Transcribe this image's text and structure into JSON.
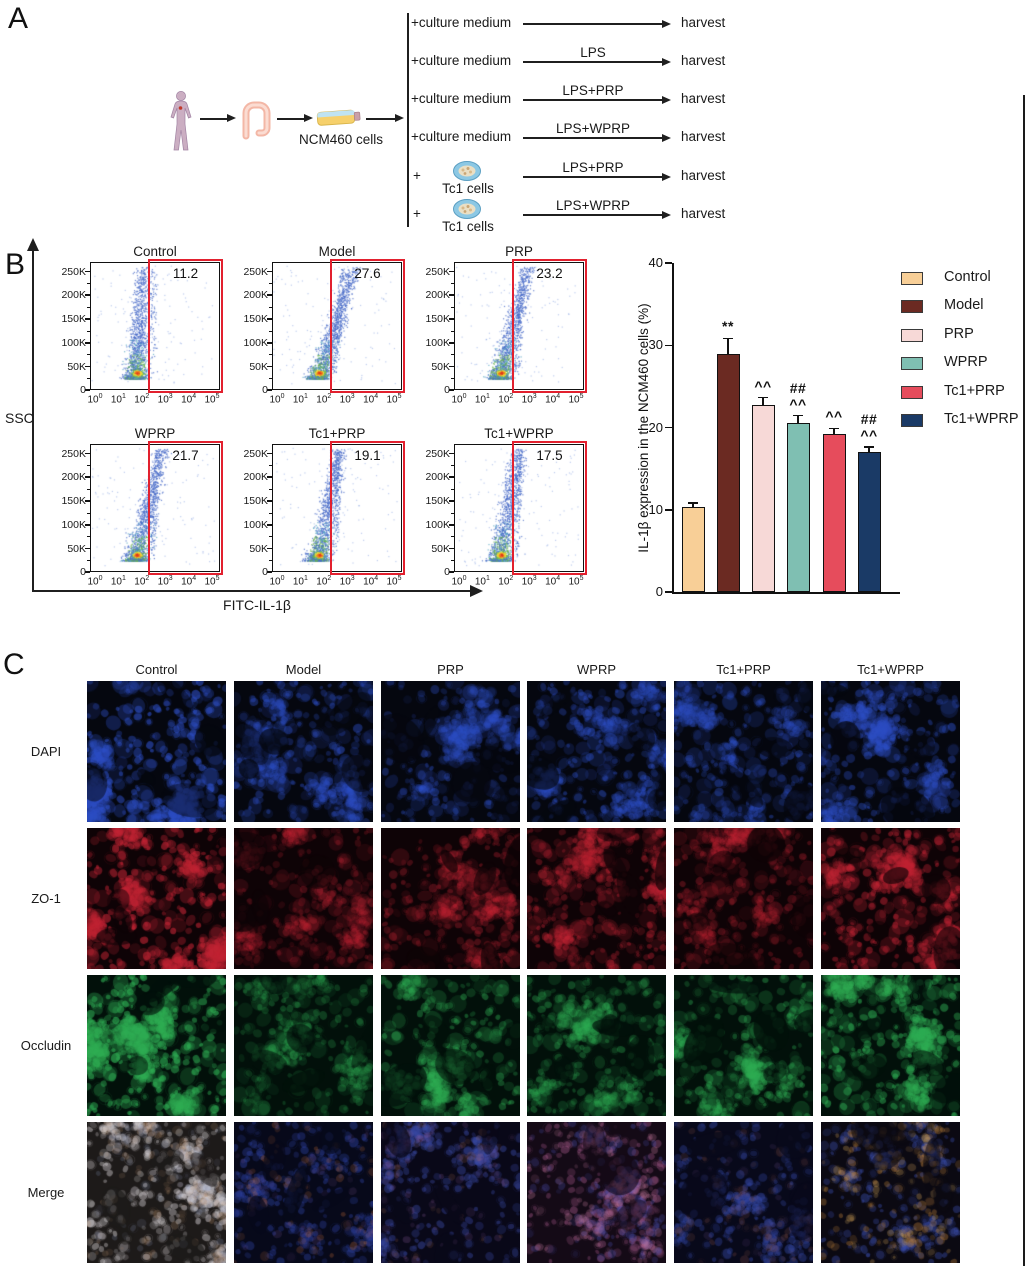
{
  "panel_a": {
    "label": "A",
    "icons": [
      "human-body-icon",
      "intestine-icon",
      "culture-flask-icon",
      "tc1-cells-icon"
    ],
    "source_label": "NCM460 cells",
    "tc1_cells_label": "Tc1 cells",
    "rows": [
      {
        "source": "+culture medium",
        "treatment": "",
        "result": "harvest",
        "with_tc1": false
      },
      {
        "source": "+culture medium",
        "treatment": "LPS",
        "result": "harvest",
        "with_tc1": false
      },
      {
        "source": "+culture medium",
        "treatment": "LPS+PRP",
        "result": "harvest",
        "with_tc1": false
      },
      {
        "source": "+culture medium",
        "treatment": "LPS+WPRP",
        "result": "harvest",
        "with_tc1": false
      },
      {
        "source": "+",
        "treatment": "LPS+PRP",
        "result": "harvest",
        "with_tc1": true
      },
      {
        "source": "+",
        "treatment": "LPS+WPRP",
        "result": "harvest",
        "with_tc1": true
      }
    ]
  },
  "panel_b": {
    "label": "B",
    "ssc_axis_label": "SSC",
    "fitc_axis_label": "FITC-IL-1β",
    "y_ticks": [
      "250K",
      "200K",
      "150K",
      "100K",
      "50K",
      "0"
    ],
    "x_tick_base": "10",
    "x_tick_exponents": [
      0,
      1,
      2,
      3,
      4,
      5
    ],
    "gate_color": "#e2202e",
    "flow_plots": [
      {
        "title": "Control",
        "percent": 11.2
      },
      {
        "title": "Model",
        "percent": 27.6
      },
      {
        "title": "PRP",
        "percent": 23.2
      },
      {
        "title": "WPRP",
        "percent": 21.7
      },
      {
        "title": "Tc1+PRP",
        "percent": 19.1
      },
      {
        "title": "Tc1+WPRP",
        "percent": 17.5
      }
    ]
  },
  "bar_chart": {
    "ylabel": "IL-1β expression in the NCM460 cells (%)",
    "y_ticks": [
      0,
      10,
      20,
      30,
      40
    ],
    "groups": [
      {
        "name": "Control",
        "value": 10.4,
        "error": 0.5,
        "color": "#f8cf97",
        "sig_upper": "",
        "sig_lower": ""
      },
      {
        "name": "Model",
        "value": 29.0,
        "error": 1.9,
        "color": "#6b2a22",
        "sig_upper": "",
        "sig_lower": "**"
      },
      {
        "name": "PRP",
        "value": 22.7,
        "error": 0.9,
        "color": "#f7d9d7",
        "sig_upper": "",
        "sig_lower": "^^"
      },
      {
        "name": "WPRP",
        "value": 20.5,
        "error": 0.9,
        "color": "#7fbfb2",
        "sig_upper": "##",
        "sig_lower": "^^"
      },
      {
        "name": "Tc1+PRP",
        "value": 19.2,
        "error": 0.7,
        "color": "#e64c5c",
        "sig_upper": "",
        "sig_lower": "^^"
      },
      {
        "name": "Tc1+WPRP",
        "value": 17.0,
        "error": 0.6,
        "color": "#1a3a66",
        "sig_upper": "##",
        "sig_lower": "^^"
      }
    ]
  },
  "panel_c": {
    "label": "C",
    "columns": [
      "Control",
      "Model",
      "PRP",
      "WPRP",
      "Tc1+PRP",
      "Tc1+WPRP"
    ],
    "rows": [
      "DAPI",
      "ZO-1",
      "Occludin",
      "Merge"
    ],
    "tiles": {
      "standard_rows": [
        {
          "row": "DAPI",
          "base": "#05070f",
          "cell": "#2d4ec4",
          "brightness": [
            0.95,
            0.62,
            0.55,
            0.62,
            0.55,
            0.72
          ],
          "density": [
            1.15,
            0.95,
            0.8,
            0.95,
            0.85,
            0.95
          ]
        },
        {
          "row": "ZO-1",
          "base": "#0e0306",
          "cell": "#c22434",
          "brightness": [
            0.95,
            0.3,
            0.4,
            0.55,
            0.35,
            0.7
          ],
          "density": [
            1.2,
            0.9,
            0.9,
            1.0,
            0.9,
            1.05
          ]
        },
        {
          "row": "Occludin",
          "base": "#02100a",
          "cell": "#2fae54",
          "brightness": [
            1.0,
            0.3,
            0.55,
            0.42,
            0.5,
            0.8
          ],
          "density": [
            1.2,
            0.8,
            0.85,
            0.85,
            0.9,
            1.0
          ]
        }
      ],
      "merge_row": [
        {
          "base": "#1d1a19",
          "layers": [
            [
              "#d8d3d6",
              420,
              0.4
            ],
            [
              "#b9906e",
              140,
              0.22
            ],
            [
              "#95a3c8",
              110,
              0.18
            ]
          ]
        },
        {
          "base": "#07091a",
          "layers": [
            [
              "#2c3f9c",
              330,
              0.4
            ],
            [
              "#c56f3a",
              70,
              0.25
            ],
            [
              "#6a4a85",
              50,
              0.2
            ]
          ]
        },
        {
          "base": "#090818",
          "layers": [
            [
              "#3a4aa6",
              330,
              0.4
            ],
            [
              "#8a5a9a",
              90,
              0.22
            ],
            [
              "#a96a4a",
              45,
              0.18
            ]
          ]
        },
        {
          "base": "#140a16",
          "layers": [
            [
              "#a85a8c",
              280,
              0.35
            ],
            [
              "#4a4fae",
              200,
              0.3
            ],
            [
              "#c87da0",
              110,
              0.25
            ]
          ]
        },
        {
          "base": "#08091a",
          "layers": [
            [
              "#3346a2",
              320,
              0.4
            ],
            [
              "#96584a",
              80,
              0.2
            ],
            [
              "#7a5a9a",
              40,
              0.15
            ]
          ]
        },
        {
          "base": "#0b0912",
          "layers": [
            [
              "#3c50b2",
              300,
              0.35
            ],
            [
              "#c8883c",
              130,
              0.3
            ],
            [
              "#e0b060",
              70,
              0.25
            ]
          ]
        }
      ]
    }
  },
  "chart_data": [
    {
      "type": "bar",
      "categories": [
        "Control",
        "Model",
        "PRP",
        "WPRP",
        "Tc1+PRP",
        "Tc1+WPRP"
      ],
      "values": [
        10.4,
        29.0,
        22.7,
        20.5,
        19.2,
        17.0
      ],
      "errors": [
        0.5,
        1.9,
        0.9,
        0.9,
        0.7,
        0.6
      ],
      "bar_colors": [
        "#f8cf97",
        "#6b2a22",
        "#f7d9d7",
        "#7fbfb2",
        "#e64c5c",
        "#1a3a66"
      ],
      "significance": [
        "",
        "**",
        "^^",
        "## ^^",
        "^^",
        "## ^^"
      ],
      "title": "",
      "xlabel": "",
      "ylabel": "IL-1β expression in the NCM460 cells (%)",
      "ylim": [
        0,
        40
      ],
      "yticks": [
        0,
        10,
        20,
        30,
        40
      ],
      "legend_position": "right",
      "grid": false
    },
    {
      "type": "scatter",
      "subtype": "flow-cytometry-pseudocolor",
      "x_axis": "FITC-IL-1β (log scale 10^0 to 10^5)",
      "y_axis": "SSC (0 to 250K)",
      "categories": [
        "Control",
        "Model",
        "PRP",
        "WPRP",
        "Tc1+PRP",
        "Tc1+WPRP"
      ],
      "gate_positive_percent": [
        11.2,
        27.6,
        23.2,
        21.7,
        19.1,
        17.5
      ]
    }
  ]
}
